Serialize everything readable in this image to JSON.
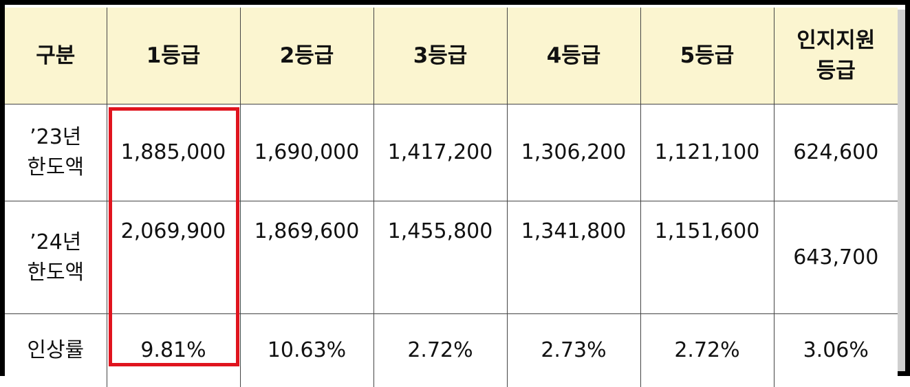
{
  "table": {
    "headers": [
      "구분",
      "1등급",
      "2등급",
      "3등급",
      "4등급",
      "5등급",
      "인지지원\n등급"
    ],
    "header_last_lines": [
      "인지지원",
      "등급"
    ],
    "rows": [
      {
        "label_lines": [
          "’23년",
          "한도액"
        ],
        "values": [
          "1,885,000",
          "1,690,000",
          "1,417,200",
          "1,306,200",
          "1,121,100",
          "624,600"
        ]
      },
      {
        "label_lines": [
          "’24년",
          "한도액"
        ],
        "values": [
          "2,069,900",
          "1,869,600",
          "1,455,800",
          "1,341,800",
          "1,151,600",
          "643,700"
        ]
      },
      {
        "label_lines": [
          "인상률"
        ],
        "values": [
          "9.81%",
          "10.63%",
          "2.72%",
          "2.73%",
          "2.72%",
          "3.06%"
        ]
      }
    ]
  },
  "colors": {
    "header_bg": "#fbf5d0",
    "highlight_border": "#e0141e",
    "frame": "#000000"
  }
}
